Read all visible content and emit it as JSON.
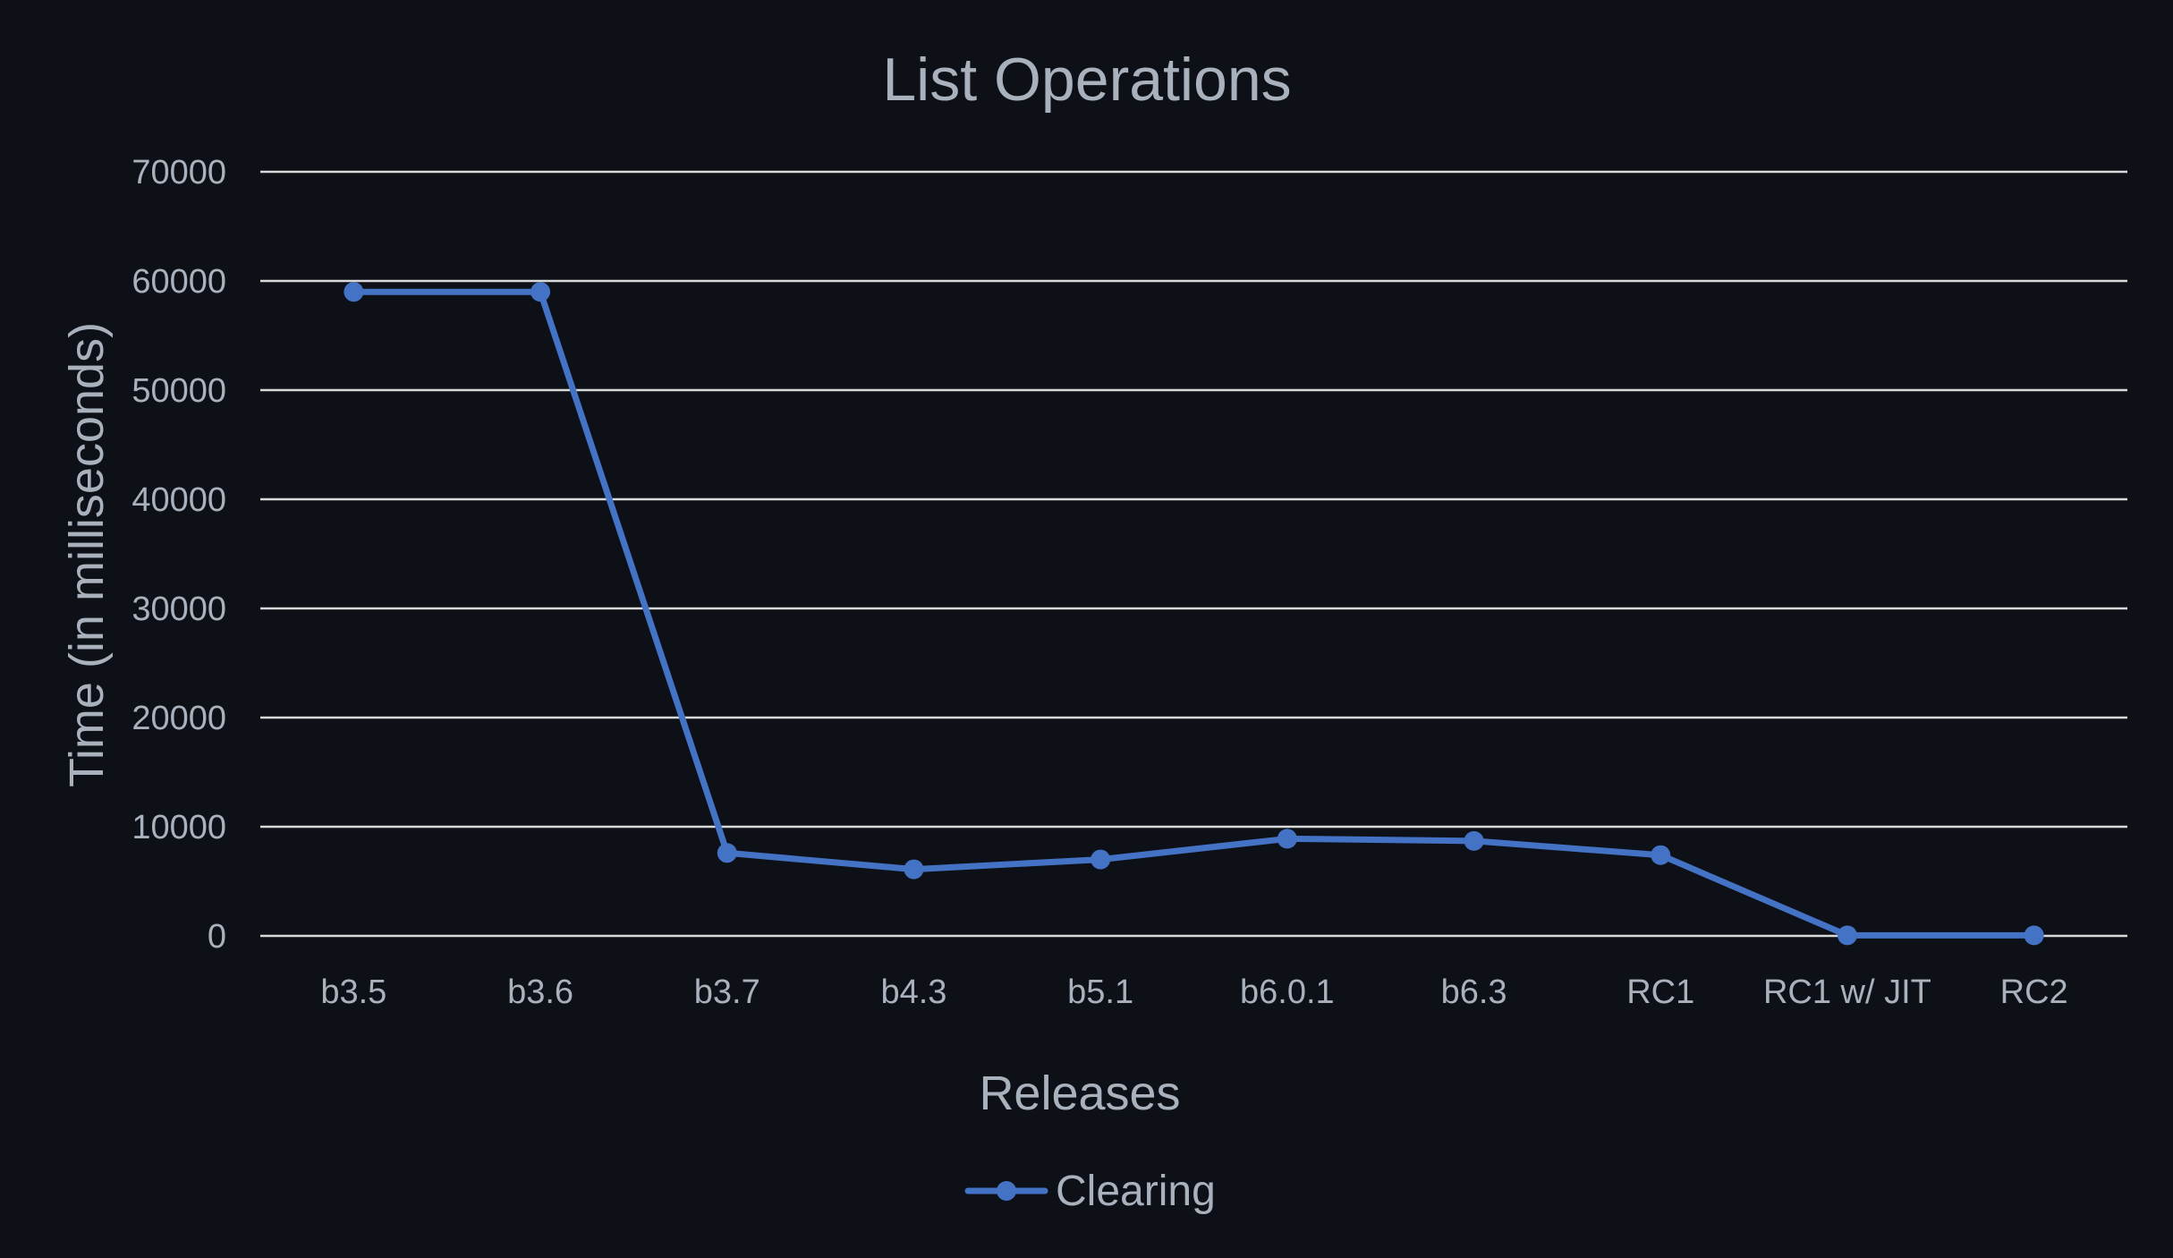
{
  "chart_data": {
    "type": "line",
    "title": "List Operations",
    "xlabel": "Releases",
    "ylabel": "Time (in milliseconds)",
    "categories": [
      "b3.5",
      "b3.6",
      "b3.7",
      "b4.3",
      "b5.1",
      "b6.0.1",
      "b6.3",
      "RC1",
      "RC1 w/ JIT",
      "RC2"
    ],
    "series": [
      {
        "name": "Clearing",
        "values": [
          59000,
          59000,
          7600,
          6100,
          7000,
          8900,
          8700,
          7400,
          50,
          50
        ]
      }
    ],
    "ylim": [
      0,
      70000
    ],
    "yticks": [
      0,
      10000,
      20000,
      30000,
      40000,
      50000,
      60000,
      70000
    ],
    "grid": true,
    "legend_position": "bottom",
    "colors": {
      "background": "#0d1017",
      "series": "#4472c4",
      "grid": "#d9d9d9",
      "text": "#a9b1bd"
    }
  }
}
